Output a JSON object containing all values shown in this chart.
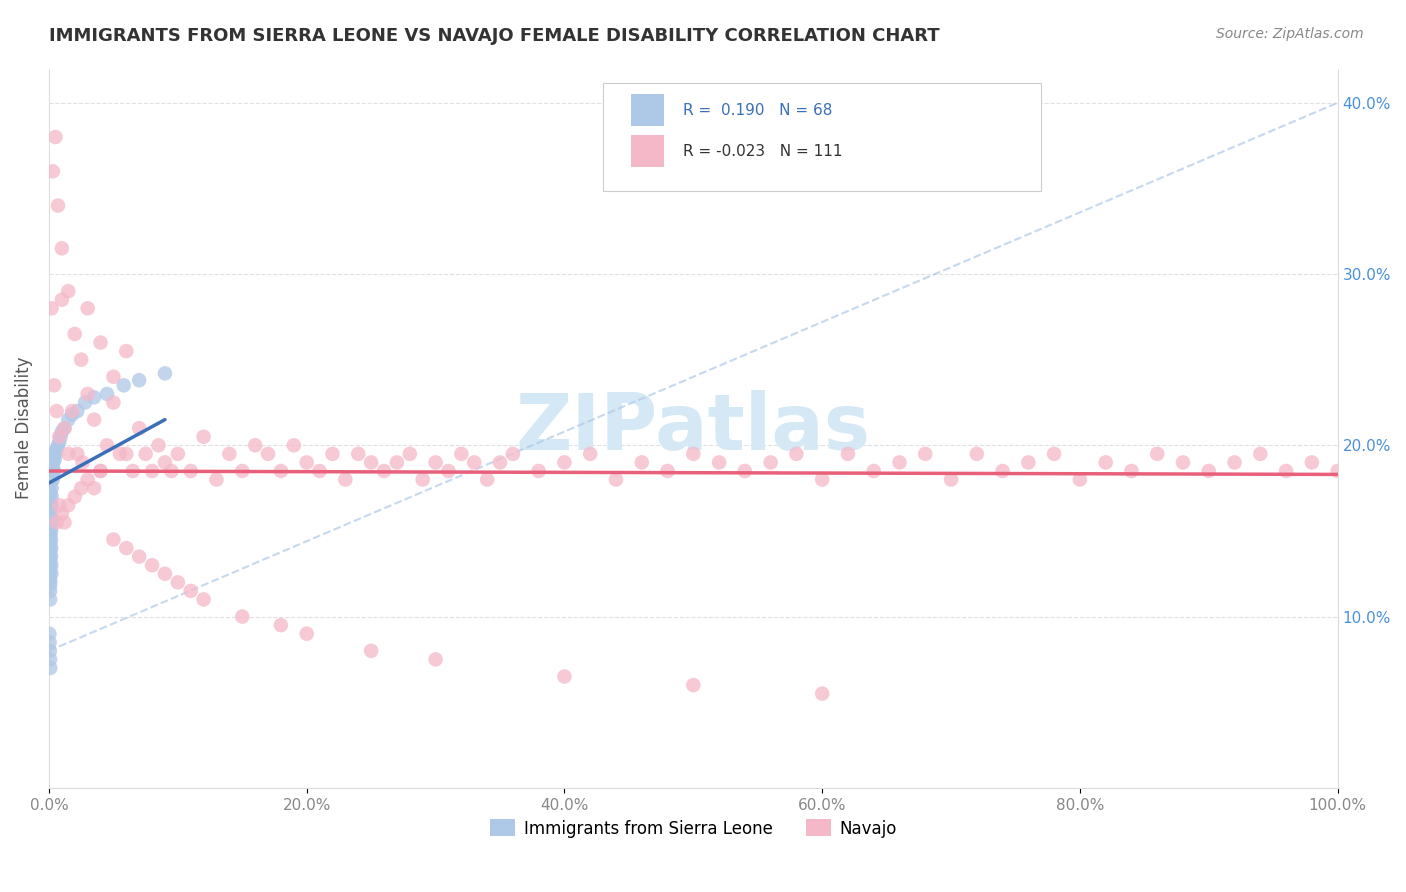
{
  "title": "IMMIGRANTS FROM SIERRA LEONE VS NAVAJO FEMALE DISABILITY CORRELATION CHART",
  "source": "Source: ZipAtlas.com",
  "ylabel": "Female Disability",
  "xlim": [
    0,
    1.0
  ],
  "ylim": [
    0.0,
    0.42
  ],
  "xticks": [
    0.0,
    0.2,
    0.4,
    0.6,
    0.8,
    1.0
  ],
  "xticklabels": [
    "0.0%",
    "20.0%",
    "40.0%",
    "60.0%",
    "80.0%",
    "100.0%"
  ],
  "yticks": [
    0.0,
    0.1,
    0.2,
    0.3,
    0.4
  ],
  "yticklabels_right": [
    "",
    "10.0%",
    "20.0%",
    "30.0%",
    "40.0%"
  ],
  "blue_color": "#aec8e8",
  "pink_color": "#f4b8c8",
  "trend_blue_color": "#3a6fba",
  "trend_pink_color": "#e8607a",
  "dash_color": "#aec8e8",
  "watermark_color": "#d5e8f5",
  "title_color": "#333333",
  "source_color": "#888888",
  "tick_color_right": "#4a90d9",
  "tick_color_bottom": "#888888",
  "grid_color": "#dddddd",
  "legend_r1_color": "#3a6fba",
  "legend_r2_color": "#333333",
  "blue_scatter_x": [
    0.0002,
    0.0003,
    0.0004,
    0.0004,
    0.0005,
    0.0005,
    0.0006,
    0.0006,
    0.0007,
    0.0007,
    0.0008,
    0.0008,
    0.0009,
    0.0009,
    0.001,
    0.001,
    0.001,
    0.0011,
    0.0011,
    0.0012,
    0.0012,
    0.0013,
    0.0013,
    0.0014,
    0.0014,
    0.0015,
    0.0015,
    0.0016,
    0.0016,
    0.0017,
    0.0017,
    0.0018,
    0.0019,
    0.002,
    0.002,
    0.0021,
    0.0022,
    0.0023,
    0.0025,
    0.0026,
    0.0028,
    0.003,
    0.003,
    0.0032,
    0.0035,
    0.004,
    0.004,
    0.0045,
    0.005,
    0.006,
    0.007,
    0.008,
    0.009,
    0.01,
    0.012,
    0.015,
    0.018,
    0.022,
    0.028,
    0.035,
    0.045,
    0.058,
    0.07,
    0.09,
    0.0003,
    0.0005,
    0.0007,
    0.0009,
    0.001
  ],
  "blue_scatter_y": [
    0.185,
    0.175,
    0.165,
    0.155,
    0.15,
    0.145,
    0.14,
    0.135,
    0.13,
    0.125,
    0.122,
    0.118,
    0.115,
    0.11,
    0.12,
    0.128,
    0.132,
    0.138,
    0.143,
    0.148,
    0.153,
    0.158,
    0.163,
    0.168,
    0.172,
    0.155,
    0.16,
    0.15,
    0.145,
    0.14,
    0.135,
    0.13,
    0.125,
    0.165,
    0.17,
    0.175,
    0.18,
    0.185,
    0.188,
    0.19,
    0.192,
    0.195,
    0.18,
    0.185,
    0.19,
    0.195,
    0.185,
    0.192,
    0.195,
    0.198,
    0.2,
    0.202,
    0.205,
    0.208,
    0.21,
    0.215,
    0.218,
    0.22,
    0.225,
    0.228,
    0.23,
    0.235,
    0.238,
    0.242,
    0.09,
    0.085,
    0.08,
    0.075,
    0.07
  ],
  "pink_scatter_x": [
    0.002,
    0.004,
    0.006,
    0.008,
    0.01,
    0.012,
    0.015,
    0.018,
    0.022,
    0.026,
    0.03,
    0.035,
    0.04,
    0.045,
    0.05,
    0.055,
    0.06,
    0.065,
    0.07,
    0.075,
    0.08,
    0.085,
    0.09,
    0.095,
    0.1,
    0.11,
    0.12,
    0.13,
    0.14,
    0.15,
    0.16,
    0.17,
    0.18,
    0.19,
    0.2,
    0.21,
    0.22,
    0.23,
    0.24,
    0.25,
    0.26,
    0.27,
    0.28,
    0.29,
    0.3,
    0.31,
    0.32,
    0.33,
    0.34,
    0.35,
    0.36,
    0.38,
    0.4,
    0.42,
    0.44,
    0.46,
    0.48,
    0.5,
    0.52,
    0.54,
    0.56,
    0.58,
    0.6,
    0.62,
    0.64,
    0.66,
    0.68,
    0.7,
    0.72,
    0.74,
    0.76,
    0.78,
    0.8,
    0.82,
    0.84,
    0.86,
    0.88,
    0.9,
    0.92,
    0.94,
    0.96,
    0.98,
    1.0,
    0.006,
    0.01,
    0.015,
    0.02,
    0.025,
    0.03,
    0.04,
    0.035,
    0.008,
    0.012,
    0.05,
    0.06,
    0.07,
    0.08,
    0.09,
    0.1,
    0.11,
    0.12,
    0.15,
    0.18,
    0.2,
    0.25,
    0.3,
    0.4,
    0.5,
    0.6
  ],
  "pink_scatter_y": [
    0.28,
    0.235,
    0.22,
    0.205,
    0.285,
    0.21,
    0.195,
    0.22,
    0.195,
    0.19,
    0.23,
    0.215,
    0.185,
    0.2,
    0.225,
    0.195,
    0.195,
    0.185,
    0.21,
    0.195,
    0.185,
    0.2,
    0.19,
    0.185,
    0.195,
    0.185,
    0.205,
    0.18,
    0.195,
    0.185,
    0.2,
    0.195,
    0.185,
    0.2,
    0.19,
    0.185,
    0.195,
    0.18,
    0.195,
    0.19,
    0.185,
    0.19,
    0.195,
    0.18,
    0.19,
    0.185,
    0.195,
    0.19,
    0.18,
    0.19,
    0.195,
    0.185,
    0.19,
    0.195,
    0.18,
    0.19,
    0.185,
    0.195,
    0.19,
    0.185,
    0.19,
    0.195,
    0.18,
    0.195,
    0.185,
    0.19,
    0.195,
    0.18,
    0.195,
    0.185,
    0.19,
    0.195,
    0.18,
    0.19,
    0.185,
    0.195,
    0.19,
    0.185,
    0.19,
    0.195,
    0.185,
    0.19,
    0.185,
    0.155,
    0.16,
    0.165,
    0.17,
    0.175,
    0.18,
    0.185,
    0.175,
    0.165,
    0.155,
    0.145,
    0.14,
    0.135,
    0.13,
    0.125,
    0.12,
    0.115,
    0.11,
    0.1,
    0.095,
    0.09,
    0.08,
    0.075,
    0.065,
    0.06,
    0.055
  ],
  "pink_outlier_x": [
    0.003,
    0.005,
    0.007,
    0.01,
    0.015,
    0.02,
    0.025,
    0.03,
    0.04,
    0.05,
    0.06
  ],
  "pink_outlier_y": [
    0.36,
    0.38,
    0.34,
    0.315,
    0.29,
    0.265,
    0.25,
    0.28,
    0.26,
    0.24,
    0.255
  ],
  "dash_line_x0": 0.0,
  "dash_line_y0": 0.08,
  "dash_line_x1": 1.0,
  "dash_line_y1": 0.4,
  "pink_trend_y0": 0.185,
  "pink_trend_y1": 0.183,
  "blue_trend_x0": 0.0,
  "blue_trend_y0": 0.178,
  "blue_trend_x1": 0.09,
  "blue_trend_y1": 0.215
}
